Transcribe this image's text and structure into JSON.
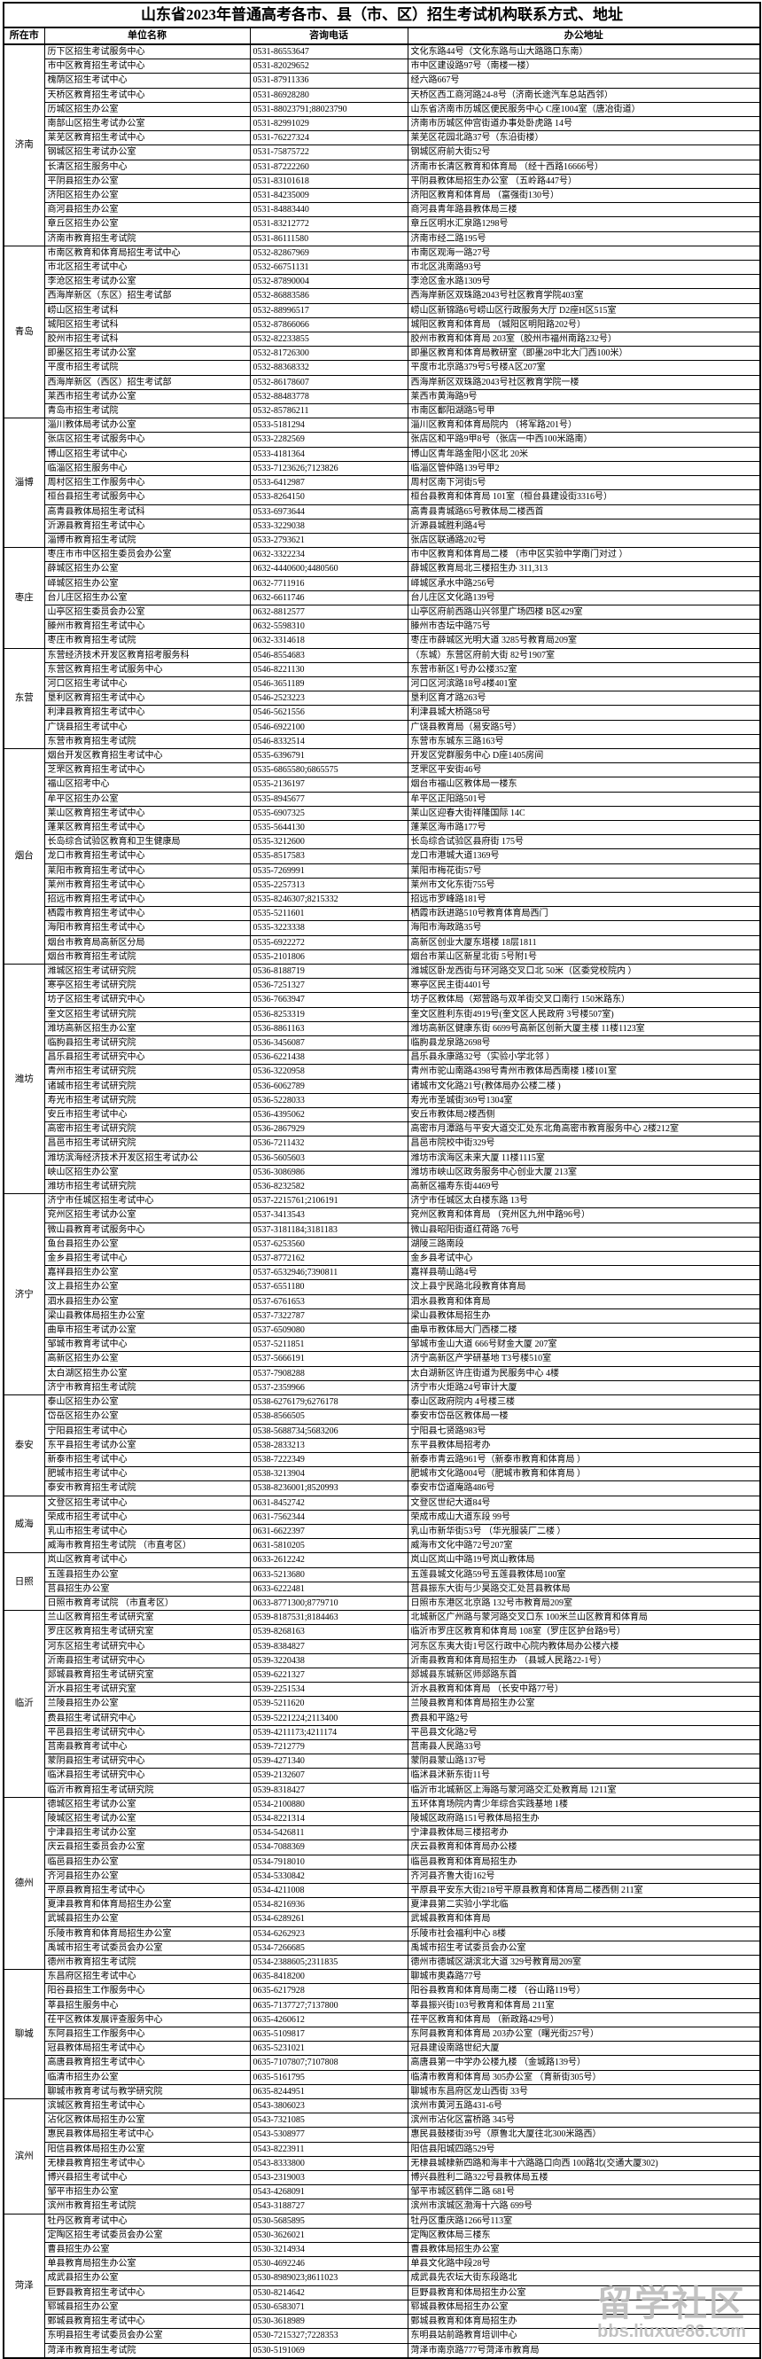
{
  "title": "山东省2023年普通高考各市、县（市、区）招生考试机构联系方式、地址",
  "watermark": {
    "line1": "留学社区",
    "line2": "bbs.liuxue86.com",
    "color": "#bcbcbc"
  },
  "colors": {
    "text": "#000000",
    "background": "#ffffff",
    "border": "#000000"
  },
  "table": {
    "columns": [
      "所在市",
      "单位名称",
      "咨询电话",
      "办公地址"
    ],
    "groups": [
      {
        "city": "济南",
        "rows": [
          [
            "历下区招生考试服务中心",
            "0531-86553647",
            "文化东路44号（文化东路与山大路路口东南）"
          ],
          [
            "市中区教育招生考试中心",
            "0531-82029652",
            "市中区建设路97号（南楼一楼）"
          ],
          [
            "槐荫区招生考试中心",
            "0531-87911336",
            "经六路667号"
          ],
          [
            "天桥区教育招生考试中心",
            "0531-86928280",
            "天桥区西工商河路24-8号（济南长途汽车总站西邻）"
          ],
          [
            "历城区招生办公室",
            "0531-88023791;88023790",
            "山东省济南市历城区便民服务中心 C座1004室（唐冶街道）"
          ],
          [
            "南部山区招生考试办公室",
            "0531-82991029",
            "济南市历城区仲宫街道办事处卧虎路 14号"
          ],
          [
            "莱芜区教育招生考试中心",
            "0531-76227324",
            "莱芜区花园北路37号（东沿街楼）"
          ],
          [
            "钢城区招生考试办公室",
            "0531-75875722",
            "钢城区府前大街52号"
          ],
          [
            "长清区招生服务中心",
            "0531-87222260",
            "济南市长清区教育和体育局 （经十西路16666号）"
          ],
          [
            "平阴县招生办公室",
            "0531-83101618",
            "平阴县教体局招生办公室 （五岭路447号）"
          ],
          [
            "济阳区招生办公室",
            "0531-84235009",
            "济阳区教育和体育局 （富强街130号）"
          ],
          [
            "商河县招生办公室",
            "0531-84883440",
            "商河县青年路县教体局三楼"
          ],
          [
            "章丘区招生办公室",
            "0531-83212772",
            "章丘区明水汇泉路1298号"
          ],
          [
            "济南市教育招生考试院",
            "0531-86111580",
            "济南市经二路195号"
          ]
        ]
      },
      {
        "city": "青岛",
        "rows": [
          [
            "市南区教育和体育局招生考试中心",
            "0532-82867969",
            "市南区观海一路27号"
          ],
          [
            "市北区招生考试中心",
            "0532-66751131",
            "市北区洮南路93号"
          ],
          [
            "李沧区招生考试办公室",
            "0532-87890004",
            "李沧区金水路1309号"
          ],
          [
            "西海岸新区（东区）招生考试部",
            "0532-86883586",
            "西海岸新区双珠路2043号社区教育学院403室"
          ],
          [
            "崂山区招生考试科",
            "0532-88996517",
            "崂山区新锦路6号崂山区行政服务大厅 D2座H区515室"
          ],
          [
            "城阳区招生考试科",
            "0532-87866066",
            "城阳区教育和体育局 （城阳区明阳路202号）"
          ],
          [
            "胶州市招生考试科",
            "0532-82233855",
            "胶州市教育和体育局 203室（胶州市福州南路232号）"
          ],
          [
            "即墨区招生考试办公室",
            "0532-81726300",
            "即墨区教育和体育局教研室（即墨28中北大门西100米）"
          ],
          [
            "平度市招生考试院",
            "0532-88368332",
            "平度市北京路379号5号楼A区207室"
          ],
          [
            "西海岸新区（西区）招生考试部",
            "0532-86178607",
            "西海岸新区双珠路2043号社区教育学院一楼"
          ],
          [
            "莱西市招生考试办公室",
            "0532-88483778",
            "莱西市黄海路9号"
          ],
          [
            "青岛市招生考试院",
            "0532-85786211",
            "市南区鄱阳湖路5号甲"
          ]
        ]
      },
      {
        "city": "淄博",
        "rows": [
          [
            "淄川教体局考试办公室",
            "0533-5181294",
            "淄川区教育和体育局院内 （将军路201号）"
          ],
          [
            "张店区招生考试服务中心",
            "0533-2282569",
            "张店区和平路9甲8号（张店一中西100米路南）"
          ],
          [
            "博山区招生考试中心",
            "0533-4181364",
            "博山区青年路金阳小区北 20米"
          ],
          [
            "临淄区招生服务中心",
            "0533-7123626;7123826",
            "临淄区管仲路139号甲2"
          ],
          [
            "周村区招生工作服务中心",
            "0533-6412987",
            "周村区南下河街5号"
          ],
          [
            "桓台县招生考试服务中心",
            "0533-8264150",
            "桓台县教育和体育局 101室（桓台县建设街3316号）"
          ],
          [
            "高青县教体局招生考试科",
            "0533-6973644",
            "高青县青城路65号教体局二楼西首"
          ],
          [
            "沂源县教育招生考试中心",
            "0533-3229038",
            "沂源县城胜利路4号"
          ],
          [
            "淄博市教育招生考试院",
            "0533-2793621",
            "张店区联通路202号"
          ]
        ]
      },
      {
        "city": "枣庄",
        "rows": [
          [
            "枣庄市市中区招生委员会办公室",
            "0632-3322234",
            "市中区教育和体育局二楼 （市中区实验中学南门对过 ）"
          ],
          [
            "薛城区招生办公室",
            "0632-4440600;4480560",
            "薛城区教育局北三楼招生办 311,313"
          ],
          [
            "峄城区招生办公室",
            "0632-7711916",
            "峄城区承水中路256号"
          ],
          [
            "台儿庄区招生办公室",
            "0632-6611746",
            "台儿庄区文化路139号"
          ],
          [
            "山亭区招生委员会办公室",
            "0632-8812577",
            "山亭区府前西路山兴邻里广场四楼 B区429室"
          ],
          [
            "滕州市教育招生考试中心",
            "0632-5598310",
            "滕州市杏坛中路75号"
          ],
          [
            "枣庄市教育招生考试院",
            "0632-3314618",
            "枣庄市薛城区光明大道 3285号教育局209室"
          ]
        ]
      },
      {
        "city": "东营",
        "rows": [
          [
            "东营经济技术开发区教育招考服务科",
            "0546-8554683",
            "（东城）东营区府前大街 82号1907室"
          ],
          [
            "东营区教育招生考试服务中心",
            "0546-8221130",
            "东营市新区1号办公楼352室"
          ],
          [
            "河口区招生考试中心",
            "0546-3651189",
            "河口区河滨路18号4楼401室"
          ],
          [
            "垦利区教育招生考试中心",
            "0546-2523223",
            "垦利区育才路263号"
          ],
          [
            "利津县教育招生考试中心",
            "0546-5621556",
            "利津县城大桥路58号"
          ],
          [
            "广饶县招生考试中心",
            "0546-6922100",
            "广饶县教育局（易安路5号）"
          ],
          [
            "东营市教育招生考试院",
            "0546-8332514",
            "东营市东城东三路163号"
          ]
        ]
      },
      {
        "city": "烟台",
        "rows": [
          [
            "烟台开发区教育招生考试中心",
            "0535-6396791",
            "开发区党群服务中心 D座1405房间"
          ],
          [
            "芝罘区教育招生考试中心",
            "0535-6865580;6865575",
            "芝罘区平安街46号"
          ],
          [
            "福山区招考中心",
            "0535-2136197",
            "烟台市福山区教体局一楼东"
          ],
          [
            "牟平区招生办公室",
            "0535-8945677",
            "牟平区正阳路501号"
          ],
          [
            "莱山区教育招生考试中心",
            "0535-6907325",
            "莱山区迎春大街祥隆国际 14C"
          ],
          [
            "蓬莱区教育招生考试中心",
            "0535-5644130",
            "蓬莱区海市路177号"
          ],
          [
            "长岛综合试验区教育和卫生健康局",
            "0535-3212600",
            "长岛综合试验区县府街 175号"
          ],
          [
            "龙口市教育招生考试中心",
            "0535-8517583",
            "龙口市港城大道1369号"
          ],
          [
            "莱阳市教育招生考试中心",
            "0535-7269991",
            "莱阳市梅花街57号"
          ],
          [
            "莱州市教育招生考试中心",
            "0535-2257313",
            "莱州市文化东街755号"
          ],
          [
            "招远市教育招生考试中心",
            "0535-8246307;8215332",
            "招远市罗峰路181号"
          ],
          [
            "栖霞市教育招生考试中心",
            "0535-5211601",
            "栖霞市跃进路510号教育体育局西门"
          ],
          [
            "海阳市教育招生考试中心",
            "0535-3223338",
            "海阳市海政路35号"
          ],
          [
            "烟台市教育局高新区分局",
            "0535-6922272",
            "高新区创业大厦东塔楼 18层1811"
          ],
          [
            "烟台市教育招生考试院",
            "0535-2101806",
            "烟台市莱山区新星北街 5号附1号"
          ]
        ]
      },
      {
        "city": "潍坊",
        "rows": [
          [
            "潍城区招生考试研究院",
            "0536-8188719",
            "潍城区卧龙西街与环河路交叉口北 50米（区委党校院内 ）"
          ],
          [
            "寒亭区招生考试研究院",
            "0536-7251327",
            "寒亭区民主街4401号"
          ],
          [
            "坊子区招生考试研究中心",
            "0536-7663947",
            "坊子区教体局（郑营路与双羊街交叉口南行 150米路东）"
          ],
          [
            "奎文区招生考试研究院",
            "0536-8253319",
            "奎文区胜利东街4919号(奎文区人民政府 3号楼507室)"
          ],
          [
            "潍坊高新区招生办公室",
            "0536-8861163",
            "潍坊高新区健康东街 6699号高新区创新大厦主楼 11楼1123室"
          ],
          [
            "临朐县招生考试研究院",
            "0536-3456087",
            "临朐县龙泉路2698号"
          ],
          [
            "昌乐县招生考试研究中心",
            "0536-6221438",
            "昌乐县永康路32号（实验小学北邻 ）"
          ],
          [
            "青州市招生考试研究院",
            "0536-3220958",
            "青州市驼山南路4398号青州市教体局西南楼 1楼101室"
          ],
          [
            "诸城市招生考试研究院",
            "0536-6062789",
            "诸城市文化路21号(教体局办公楼二楼 )"
          ],
          [
            "寿光市招生考试研究院",
            "0536-5228033",
            "寿光市圣城街369号1304室"
          ],
          [
            "安丘市招生考试中心",
            "0536-4395062",
            "安丘市教体局2楼西侧"
          ],
          [
            "高密市招生考试研究院",
            "0536-2867929",
            "高密市月潭路与平安大道交汇处东北角高密市教育服务中心  2楼212室"
          ],
          [
            "昌邑市招生考试研究院",
            "0536-7211432",
            "昌邑市院校中街329号"
          ],
          [
            "潍坊滨海经济技术开发区招生考试办公",
            "0536-5605603",
            "潍坊市滨海区未来大厦 11楼1115室"
          ],
          [
            "峡山区招生办公室",
            "0536-3086986",
            "潍坊市峡山区政务服务中心创业大厦 213室"
          ],
          [
            "潍坊市招生考试研究院",
            "0536-8232582",
            "高新区福寿东街4469号"
          ]
        ]
      },
      {
        "city": "济宁",
        "rows": [
          [
            "济宁市任城区招生考试中心",
            "0537-2215761;2106191",
            "济宁市任城区太白楼东路 13号"
          ],
          [
            "兖州区招生考试办公室",
            "0537-3413543",
            "兖州区教育和体育局 （兖州区九州中路96号）"
          ],
          [
            "微山县教育考试服务中心",
            "0537-3181184;3181183",
            "微山县昭阳街道红荷路 76号"
          ],
          [
            "鱼台县招生办公室",
            "0537-6253560",
            "湖陵三路南段"
          ],
          [
            "金乡县招生考试中心",
            "0537-8772162",
            "金乡县考试中心"
          ],
          [
            "嘉祥县招生办公室",
            "0537-6532946;7390811",
            "嘉祥县萌山路4号"
          ],
          [
            "汶上县招生办公室",
            "0537-6551180",
            "汶上县宁民路北段教育体育局"
          ],
          [
            "泗水县招生办公室",
            "0537-6761653",
            "泗水县教育和体育局"
          ],
          [
            "梁山县教体局招生办公室",
            "0537-7322787",
            "梁山县教体局招生办"
          ],
          [
            "曲阜市招生考试办公室",
            "0537-6509080",
            "曲阜市教体局大门西楼二楼"
          ],
          [
            "邹城市教育考试中心",
            "0537-5211851",
            "邹城市金山大道 666号财金大厦 207室"
          ],
          [
            "高新区招生办公室",
            "0537-5666191",
            "济宁高新区产学研基地 T3号楼510室"
          ],
          [
            "太白湖区招生办公室",
            "0537-7908288",
            "太白湖新区许庄街道为民服务中心 4楼"
          ],
          [
            "济宁市教育招生考试院",
            "0537-2359966",
            "济宁市火炬路24号审计大厦"
          ]
        ]
      },
      {
        "city": "泰安",
        "rows": [
          [
            "泰山区招生办公室",
            "0538-6276179;6276178",
            "泰山区政府院内 4号楼三楼"
          ],
          [
            "岱岳区招生办公室",
            "0538-8566505",
            "泰安市岱岳区教体局一楼"
          ],
          [
            "宁阳县招生考试中心",
            "0538-5688734;5683206",
            "宁阳县七贤路983号"
          ],
          [
            "东平县招生考试办公室",
            "0538-2833213",
            "东平县教体局招考办"
          ],
          [
            "新泰市招生考试中心",
            "0538-7222349",
            "新泰市青云路961号（新泰市教育和体育局 ）"
          ],
          [
            "肥城市招生考试中心",
            "0538-3213904",
            "肥城市文化路004号（肥城市教育和体育局 ）"
          ],
          [
            "泰安市教育招生考试院",
            "0538-8236001;8520993",
            "泰安市岱道庵路486号"
          ]
        ]
      },
      {
        "city": "威海",
        "rows": [
          [
            "文登区招生考试中心",
            "0631-8452742",
            "文登区世纪大道84号"
          ],
          [
            "荣成市招生考试中心",
            "0631-7562344",
            "荣成市成山大道东段 99号"
          ],
          [
            "乳山市招生考试中心",
            "0631-6622397",
            "乳山市新华街53号 （华光服装厂二楼 ）"
          ],
          [
            "威海市教育招生考试院 （市直考区）",
            "0631-5810205",
            "威海市文化中路72号207室"
          ]
        ]
      },
      {
        "city": "日照",
        "rows": [
          [
            "岚山区教育考试中心",
            "0633-2612242",
            "岚山区岚山中路19号岚山教体局"
          ],
          [
            "五莲县招生办公室",
            "0633-5213680",
            "五莲县城文化路59号五莲县教体局100室"
          ],
          [
            "莒县招生办公室",
            "0633-6222481",
            "莒县振东大街与少昊路交汇处莒县教体局"
          ],
          [
            "日照市教育考试院 （市直考区）",
            "0633-8771300;8779710",
            "日照市东港区北京路 132号市教育局209室"
          ]
        ]
      },
      {
        "city": "临沂",
        "rows": [
          [
            "兰山区教育招生考试研究室",
            "0539-8187531;8184463",
            "北城新区广州路与蒙河路交叉口东 100米兰山区教育和体育局"
          ],
          [
            "罗庄区教育招生考试研究室",
            "0539-8268163",
            "临沂市罗庄区教育和体育局 108室（罗庄区护台路9号）"
          ],
          [
            "河东区招生考试研究中心",
            "0539-8384827",
            "河东区东夷大街1号区行政中心院内教体局办公楼六楼"
          ],
          [
            "沂南县招生考试研究中心",
            "0539-3220438",
            "沂南县教育和体育局招生办 （县城人民路22-1号）"
          ],
          [
            "郯城县教育招生考试研究室",
            "0539-6221327",
            "郯城县东城新区师郯路东首"
          ],
          [
            "沂水县招生考试研究室",
            "0539-2251534",
            "沂水县教育和体育局 （长安中路77号）"
          ],
          [
            "兰陵县招生办公室",
            "0539-5211620",
            "兰陵县教育和体育局招生办公室"
          ],
          [
            "费县招生考试研究中心",
            "0539-5221224;2113400",
            "费县和平路2号"
          ],
          [
            "平邑县招生考试研究中心",
            "0539-4211173;4211174",
            "平邑县文化路2号"
          ],
          [
            "莒南县教育考试中心",
            "0539-7212779",
            "莒南县人民路33号"
          ],
          [
            "蒙阴县招生考试研究中心",
            "0539-4271340",
            "蒙阴县蒙山路137号"
          ],
          [
            "临沭县招生考试研究中心",
            "0539-2132607",
            "临沭县沭新东街11号"
          ],
          [
            "临沂市教育招生考试研究院",
            "0539-8318427",
            "临沂市北城新区上海路与蒙河路交汇处教育局 1211室"
          ]
        ]
      },
      {
        "city": "德州",
        "rows": [
          [
            "德城区招生考试办公室",
            "0534-2100880",
            "五环体育场院内青少年综合实践基地 1楼"
          ],
          [
            "陵城区招生考试办公室",
            "0534-8221314",
            "陵城区政府路151号教体局招生办"
          ],
          [
            "宁津县招生考试办公室",
            "0534-5426811",
            "宁津县教体局三楼招考办"
          ],
          [
            "庆云县招生委员会办公室",
            "0534-7088369",
            "庆云县教育和体育局办公楼"
          ],
          [
            "临邑县招生办公室",
            "0534-7918010",
            "临邑县教育和体育局招生办"
          ],
          [
            "齐河县招生办公室",
            "0534-5330842",
            "齐河县齐鲁大街162号"
          ],
          [
            "平原县教育招生考试中心",
            "0534-4211008",
            "平原县平安东大街218号平原县教育和体育局二楼西侧 211室"
          ],
          [
            "夏津县教育和体育局招生办公室",
            "0534-8216936",
            "夏津县第二实验小学北临"
          ],
          [
            "武城县招生办公室",
            "0534-6289261",
            "武城县教育和体育局"
          ],
          [
            "乐陵市教育和体育局招生办公室",
            "0534-6262923",
            "乐陵市社会福利中心 8楼"
          ],
          [
            "禹城市招生考试委员会办公室",
            "0534-7266685",
            "禹城市招生考试委员会办公室"
          ],
          [
            "德州市教育招生考试院",
            "0534-2388605;2311835",
            "德州市德城区湖滨北大道 329号教育局209室"
          ]
        ]
      },
      {
        "city": "聊城",
        "rows": [
          [
            "东昌府区招生考试中心",
            "0635-8418200",
            "聊城市奥森路77号"
          ],
          [
            "阳谷县招生工作服务中心",
            "0635-6217928",
            "阳谷县教育和体育局南二楼 （谷山路119号）"
          ],
          [
            "莘县招生服务中心",
            "0635-7137727;7137800",
            "莘县振兴街103号教育和体育局 211室"
          ],
          [
            "茌平区教体发展评查服务中心",
            "0635-4260612",
            "茌平区教育和体育局 （新政路429号）"
          ],
          [
            "东阿县招生工作服务中心",
            "0635-5109817",
            "东阿县教育和体育局 203办公室（曙光街257号）"
          ],
          [
            "冠县教体局招生考试中心",
            "0635-5231021",
            "冠县建设南路世纪大厦"
          ],
          [
            "高唐县教育招生考试中心",
            "0635-7107807;7107808",
            "高唐县第一中学办公楼九楼 （金城路139号）"
          ],
          [
            "临清市招生办公室",
            "0635-5161795",
            "临清市教育和体育局 305办公室 （育新街305号）"
          ],
          [
            "聊城市教育考试与教学研究院",
            "0635-8244951",
            "聊城市东昌府区龙山西街 33号"
          ]
        ]
      },
      {
        "city": "滨州",
        "rows": [
          [
            "滨城区教育招生考试中心",
            "0543-3806023",
            "滨州市黄河五路431-6号"
          ],
          [
            "沾化区教体局招生办公室",
            "0543-7321085",
            "滨州市沾化区富桥路 345号"
          ],
          [
            "惠民县教体局招生考试中心",
            "0543-5308977",
            "惠民县鼓楼街39号（原鲁北大厦往北300米路西）"
          ],
          [
            "阳信县教体局招生办公室",
            "0543-8223911",
            "阳信县阳城四路529号"
          ],
          [
            "无棣县教育招生考试中心",
            "0543-8333800",
            "无棣县城棣新四路和海丰十六路路口向西 100路北(交通大厦302)"
          ],
          [
            "博兴县招生考试中心",
            "0543-2319003",
            "博兴县胜利二路322号县教体局五楼"
          ],
          [
            "邹平市招生办公室",
            "0543-4268091",
            "邹平市城区鹤伴二路 681号"
          ],
          [
            "滨州市教育招生考试院",
            "0543-3188727",
            "滨州市滨城区渤海十六路 699号"
          ]
        ]
      },
      {
        "city": "菏泽",
        "rows": [
          [
            "牡丹区教育考试中心",
            "0530-5685895",
            "牡丹区重庆路1266号113室"
          ],
          [
            "定陶区招生考试委员会办公室",
            "0530-3626021",
            "定陶区教体局三楼东"
          ],
          [
            "曹县招生办公室",
            "0530-3214934",
            "曹县教体局招生办公室"
          ],
          [
            "单县教育局招生办公室",
            "0530-4692246",
            "单县文化路中段28号"
          ],
          [
            "成武县招生办公室",
            "0530-8989023;8611023",
            "成武县先农坛大街东段路北"
          ],
          [
            "巨野县教育招生考试中心",
            "0530-8214642",
            "巨野县教育和体局招生办公室"
          ],
          [
            "郓城县招生办公室",
            "0530-6583071",
            "郓城县教体局招生办公室"
          ],
          [
            "鄄城县教育招生考试中心",
            "0530-3618989",
            "鄄城县教育和体育局招生办"
          ],
          [
            "东明县招生考试委员会办公室",
            "0530-7215327;7228353",
            "东明县站前路教育培训中心"
          ],
          [
            "菏泽市教育招生考试院",
            "0530-5191069",
            "菏泽市南京路777号菏泽市教育局"
          ]
        ]
      }
    ]
  }
}
